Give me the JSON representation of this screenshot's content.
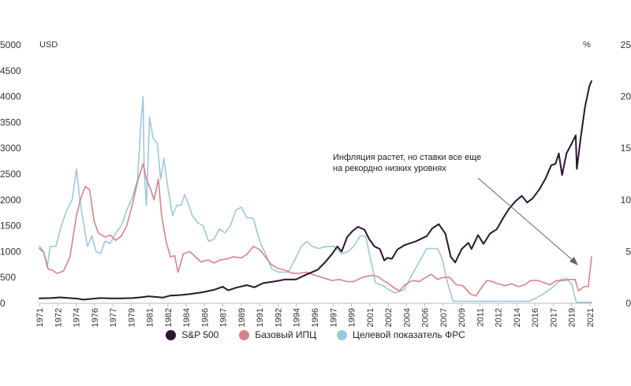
{
  "chart_data": {
    "type": "line",
    "y_left": {
      "unit": "USD",
      "ticks": [
        "0",
        "500",
        "1000",
        "1500",
        "2000",
        "2500",
        "3000",
        "3500",
        "4000",
        "4500",
        "5000"
      ],
      "range": [
        0,
        5000
      ]
    },
    "y_right": {
      "unit": "%",
      "ticks": [
        "0",
        "5",
        "10",
        "15",
        "20",
        "25"
      ],
      "range": [
        0,
        25
      ]
    },
    "x_range": [
      1971,
      2021.6
    ],
    "x_ticks": [
      "1971",
      "1972",
      "1974",
      "1976",
      "1977",
      "1979",
      "1981",
      "1982",
      "1984",
      "1986",
      "1987",
      "1989",
      "1991",
      "1992",
      "1994",
      "1996",
      "1997",
      "1999",
      "2001",
      "2002",
      "2004",
      "2006",
      "2007",
      "2009",
      "2011",
      "2012",
      "2014",
      "2016",
      "2017",
      "2019",
      "2021"
    ],
    "annotation": {
      "lines": [
        "Инфляция растет, но ставки все еще",
        "на рекордно низких уровнях"
      ]
    },
    "colors": {
      "sp500": "#2d1432",
      "cpi": "#d9828c",
      "fed": "#9cc8dc"
    },
    "series": [
      {
        "name": "S&P 500",
        "axis": "left",
        "color": "#2d1432",
        "points": [
          [
            1971,
            95
          ],
          [
            1972,
            100
          ],
          [
            1972.9,
            115
          ],
          [
            1973.5,
            105
          ],
          [
            1974.5,
            90
          ],
          [
            1975,
            70
          ],
          [
            1975.8,
            85
          ],
          [
            1976.5,
            100
          ],
          [
            1977.5,
            95
          ],
          [
            1978.5,
            95
          ],
          [
            1979.5,
            100
          ],
          [
            1980.5,
            120
          ],
          [
            1981,
            135
          ],
          [
            1981.5,
            125
          ],
          [
            1982.3,
            110
          ],
          [
            1983,
            150
          ],
          [
            1984,
            160
          ],
          [
            1985,
            185
          ],
          [
            1986,
            215
          ],
          [
            1987,
            260
          ],
          [
            1987.8,
            320
          ],
          [
            1988.3,
            250
          ],
          [
            1989,
            300
          ],
          [
            1990,
            350
          ],
          [
            1990.7,
            310
          ],
          [
            1991.5,
            390
          ],
          [
            1992.5,
            420
          ],
          [
            1993.5,
            460
          ],
          [
            1994.5,
            460
          ],
          [
            1995.5,
            560
          ],
          [
            1996.5,
            650
          ],
          [
            1997.2,
            800
          ],
          [
            1997.8,
            950
          ],
          [
            1998.3,
            1100
          ],
          [
            1998.7,
            1000
          ],
          [
            1999.2,
            1280
          ],
          [
            1999.7,
            1400
          ],
          [
            2000.2,
            1480
          ],
          [
            2000.8,
            1420
          ],
          [
            2001.2,
            1250
          ],
          [
            2001.7,
            1100
          ],
          [
            2002.2,
            1050
          ],
          [
            2002.6,
            830
          ],
          [
            2002.9,
            880
          ],
          [
            2003.3,
            860
          ],
          [
            2003.8,
            1040
          ],
          [
            2004.5,
            1130
          ],
          [
            2005.5,
            1200
          ],
          [
            2006.5,
            1300
          ],
          [
            2007,
            1450
          ],
          [
            2007.6,
            1530
          ],
          [
            2008.2,
            1350
          ],
          [
            2008.7,
            900
          ],
          [
            2009.1,
            790
          ],
          [
            2009.7,
            1050
          ],
          [
            2010.3,
            1170
          ],
          [
            2010.6,
            1050
          ],
          [
            2011.2,
            1320
          ],
          [
            2011.7,
            1150
          ],
          [
            2012.3,
            1350
          ],
          [
            2012.9,
            1430
          ],
          [
            2013.5,
            1650
          ],
          [
            2014,
            1820
          ],
          [
            2014.6,
            1970
          ],
          [
            2015.2,
            2080
          ],
          [
            2015.7,
            1950
          ],
          [
            2016.2,
            2030
          ],
          [
            2016.8,
            2200
          ],
          [
            2017.4,
            2420
          ],
          [
            2017.9,
            2670
          ],
          [
            2018.3,
            2700
          ],
          [
            2018.6,
            2900
          ],
          [
            2018.9,
            2480
          ],
          [
            2019.3,
            2900
          ],
          [
            2019.8,
            3100
          ],
          [
            2020.15,
            3250
          ],
          [
            2020.25,
            2600
          ],
          [
            2020.6,
            3200
          ],
          [
            2021,
            3800
          ],
          [
            2021.4,
            4200
          ],
          [
            2021.6,
            4300
          ]
        ]
      },
      {
        "name": "Базовый ИПЦ",
        "axis": "right",
        "color": "#d9828c",
        "points": [
          [
            1971,
            5.3
          ],
          [
            1971.4,
            4.9
          ],
          [
            1971.8,
            3.3
          ],
          [
            1972.2,
            3.2
          ],
          [
            1972.6,
            2.9
          ],
          [
            1973.2,
            3.1
          ],
          [
            1973.8,
            4.5
          ],
          [
            1974.4,
            8.5
          ],
          [
            1974.8,
            10.2
          ],
          [
            1975.2,
            11.3
          ],
          [
            1975.6,
            11.0
          ],
          [
            1976,
            8.0
          ],
          [
            1976.4,
            6.8
          ],
          [
            1977,
            6.4
          ],
          [
            1977.5,
            6.6
          ],
          [
            1978,
            6.1
          ],
          [
            1978.5,
            6.5
          ],
          [
            1979,
            7.5
          ],
          [
            1979.5,
            9.5
          ],
          [
            1980,
            11.8
          ],
          [
            1980.5,
            13.5
          ],
          [
            1980.8,
            12.0
          ],
          [
            1981.2,
            11.0
          ],
          [
            1981.5,
            10.0
          ],
          [
            1981.9,
            12.0
          ],
          [
            1982.2,
            8.5
          ],
          [
            1982.6,
            6.0
          ],
          [
            1983,
            4.5
          ],
          [
            1983.4,
            4.6
          ],
          [
            1983.7,
            3.0
          ],
          [
            1984.2,
            4.8
          ],
          [
            1984.8,
            5.0
          ],
          [
            1985.3,
            4.5
          ],
          [
            1985.8,
            4.0
          ],
          [
            1986.5,
            4.2
          ],
          [
            1987,
            3.9
          ],
          [
            1987.6,
            4.2
          ],
          [
            1988.2,
            4.3
          ],
          [
            1988.8,
            4.5
          ],
          [
            1989.5,
            4.4
          ],
          [
            1990,
            4.7
          ],
          [
            1990.6,
            5.5
          ],
          [
            1991.2,
            5.2
          ],
          [
            1991.7,
            4.5
          ],
          [
            1992.2,
            3.8
          ],
          [
            1992.8,
            3.4
          ],
          [
            1993.5,
            3.2
          ],
          [
            1994.2,
            2.9
          ],
          [
            1994.8,
            2.9
          ],
          [
            1995.5,
            3.0
          ],
          [
            1996,
            2.8
          ],
          [
            1996.6,
            2.6
          ],
          [
            1997.2,
            2.4
          ],
          [
            1997.8,
            2.2
          ],
          [
            1998.5,
            2.3
          ],
          [
            1999.2,
            2.1
          ],
          [
            1999.8,
            2.1
          ],
          [
            2000.4,
            2.4
          ],
          [
            2000.9,
            2.6
          ],
          [
            2001.5,
            2.7
          ],
          [
            2002,
            2.6
          ],
          [
            2002.5,
            2.2
          ],
          [
            2003,
            1.9
          ],
          [
            2003.5,
            1.5
          ],
          [
            2004,
            1.2
          ],
          [
            2004.5,
            1.8
          ],
          [
            2005.2,
            2.2
          ],
          [
            2005.8,
            2.1
          ],
          [
            2006.4,
            2.5
          ],
          [
            2006.9,
            2.8
          ],
          [
            2007.5,
            2.3
          ],
          [
            2008,
            2.5
          ],
          [
            2008.6,
            2.5
          ],
          [
            2009.2,
            1.8
          ],
          [
            2009.8,
            1.7
          ],
          [
            2010.5,
            0.9
          ],
          [
            2011,
            0.7
          ],
          [
            2011.5,
            1.5
          ],
          [
            2012,
            2.2
          ],
          [
            2012.5,
            2.1
          ],
          [
            2013,
            1.9
          ],
          [
            2013.7,
            1.7
          ],
          [
            2014.3,
            1.9
          ],
          [
            2014.9,
            1.6
          ],
          [
            2015.5,
            1.8
          ],
          [
            2016,
            2.2
          ],
          [
            2016.7,
            2.2
          ],
          [
            2017.2,
            2.0
          ],
          [
            2017.8,
            1.8
          ],
          [
            2018.4,
            2.2
          ],
          [
            2019,
            2.2
          ],
          [
            2019.6,
            2.3
          ],
          [
            2020.1,
            2.3
          ],
          [
            2020.4,
            1.2
          ],
          [
            2020.9,
            1.6
          ],
          [
            2021.3,
            1.6
          ],
          [
            2021.6,
            4.5
          ]
        ]
      },
      {
        "name": "Целевой показатель ФРС",
        "axis": "right",
        "color": "#9cc8dc",
        "points": [
          [
            1971,
            5.5
          ],
          [
            1971.4,
            5.0
          ],
          [
            1971.7,
            3.5
          ],
          [
            1972,
            5.5
          ],
          [
            1972.5,
            5.5
          ],
          [
            1973,
            7.5
          ],
          [
            1973.5,
            9.0
          ],
          [
            1974,
            10.0
          ],
          [
            1974.4,
            13.0
          ],
          [
            1974.7,
            10.0
          ],
          [
            1975,
            8.0
          ],
          [
            1975.4,
            5.5
          ],
          [
            1975.8,
            6.5
          ],
          [
            1976.2,
            5.0
          ],
          [
            1976.6,
            4.8
          ],
          [
            1977,
            6.0
          ],
          [
            1977.5,
            5.8
          ],
          [
            1978,
            6.8
          ],
          [
            1978.5,
            7.5
          ],
          [
            1979,
            9.0
          ],
          [
            1979.5,
            10.2
          ],
          [
            1980,
            12.0
          ],
          [
            1980.3,
            17.5
          ],
          [
            1980.5,
            20.0
          ],
          [
            1980.6,
            13.0
          ],
          [
            1980.8,
            9.5
          ],
          [
            1981.1,
            18.0
          ],
          [
            1981.4,
            16.0
          ],
          [
            1981.8,
            15.5
          ],
          [
            1982.1,
            12.0
          ],
          [
            1982.4,
            14.0
          ],
          [
            1982.8,
            11.0
          ],
          [
            1983.2,
            8.5
          ],
          [
            1983.6,
            9.5
          ],
          [
            1984,
            9.5
          ],
          [
            1984.3,
            10.5
          ],
          [
            1984.7,
            9.5
          ],
          [
            1985,
            8.5
          ],
          [
            1985.5,
            7.8
          ],
          [
            1986,
            7.5
          ],
          [
            1986.5,
            6.0
          ],
          [
            1987,
            6.2
          ],
          [
            1987.5,
            7.2
          ],
          [
            1988,
            6.8
          ],
          [
            1988.5,
            7.5
          ],
          [
            1989,
            9.0
          ],
          [
            1989.5,
            9.3
          ],
          [
            1990,
            8.3
          ],
          [
            1990.6,
            8.2
          ],
          [
            1991.2,
            6.0
          ],
          [
            1991.8,
            4.6
          ],
          [
            1992.3,
            3.3
          ],
          [
            1993,
            3.0
          ],
          [
            1993.8,
            3.0
          ],
          [
            1994.4,
            4.2
          ],
          [
            1995,
            5.5
          ],
          [
            1995.5,
            6.0
          ],
          [
            1996,
            5.5
          ],
          [
            1996.6,
            5.3
          ],
          [
            1997.3,
            5.5
          ],
          [
            1998,
            5.5
          ],
          [
            1998.7,
            4.8
          ],
          [
            1999.3,
            5.0
          ],
          [
            1999.8,
            5.5
          ],
          [
            2000.4,
            6.5
          ],
          [
            2000.9,
            6.5
          ],
          [
            2001.3,
            4.5
          ],
          [
            2001.8,
            2.0
          ],
          [
            2002.5,
            1.7
          ],
          [
            2003,
            1.3
          ],
          [
            2003.6,
            1.0
          ],
          [
            2004.4,
            1.3
          ],
          [
            2005,
            2.5
          ],
          [
            2005.8,
            4.0
          ],
          [
            2006.5,
            5.3
          ],
          [
            2007.5,
            5.3
          ],
          [
            2007.9,
            4.3
          ],
          [
            2008.4,
            2.0
          ],
          [
            2008.9,
            0.2
          ],
          [
            2010,
            0.2
          ],
          [
            2012,
            0.2
          ],
          [
            2014,
            0.2
          ],
          [
            2015.9,
            0.2
          ],
          [
            2016.5,
            0.5
          ],
          [
            2017,
            0.8
          ],
          [
            2017.6,
            1.2
          ],
          [
            2018.2,
            1.7
          ],
          [
            2018.8,
            2.3
          ],
          [
            2019.3,
            2.4
          ],
          [
            2019.8,
            1.8
          ],
          [
            2020.2,
            0.1
          ],
          [
            2021.6,
            0.1
          ]
        ]
      }
    ]
  }
}
